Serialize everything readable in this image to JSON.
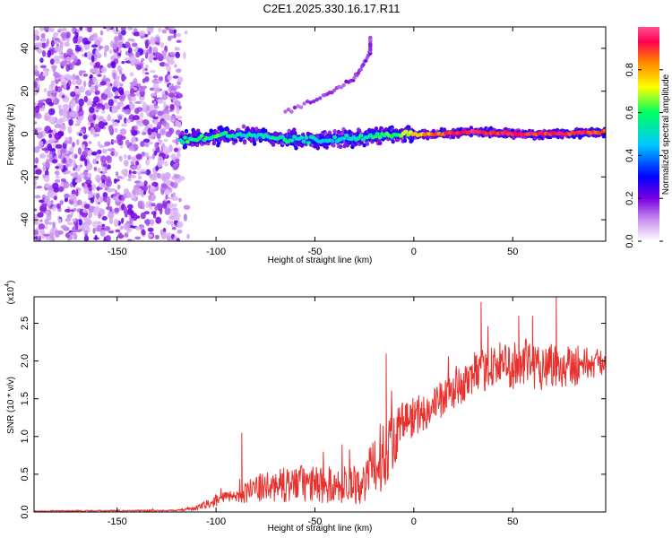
{
  "title": "C2E1.2025.330.16.17.R11",
  "chart_data": [
    {
      "type": "heatmap",
      "name": "spectrogram",
      "xlabel": "Height of straight line (km)",
      "ylabel": "Frequency (Hz)",
      "xlim": [
        -192,
        97
      ],
      "ylim": [
        -50,
        50
      ],
      "xticks": [
        -150,
        -100,
        -50,
        0,
        50
      ],
      "yticks": [
        -40,
        -20,
        0,
        20,
        40
      ],
      "colorbar": {
        "label": "Normalized spectral amplitude",
        "range": [
          0,
          1
        ],
        "ticks": [
          "0.0",
          "0.2",
          "0.4",
          "0.6",
          "0.8"
        ],
        "tick_values": [
          0,
          0.2,
          0.4,
          0.6,
          0.8
        ],
        "colors": [
          "#ffffff",
          "#c890f0",
          "#7a00e0",
          "#0000ff",
          "#00c8ff",
          "#00ff60",
          "#ffff00",
          "#ff8000",
          "#ff0050",
          "#ff5090"
        ]
      },
      "noise_region_x": [
        -192,
        -118
      ],
      "signal_track": [
        {
          "x": -118,
          "freq": -3,
          "amp": 0.55
        },
        {
          "x": -100,
          "freq": -1,
          "amp": 0.6
        },
        {
          "x": -85,
          "freq": 0,
          "amp": 0.5
        },
        {
          "x": -70,
          "freq": -2,
          "amp": 0.55
        },
        {
          "x": -50,
          "freq": -3,
          "amp": 0.5
        },
        {
          "x": -35,
          "freq": -2,
          "amp": 0.5
        },
        {
          "x": -20,
          "freq": -1,
          "amp": 0.55
        },
        {
          "x": -10,
          "freq": 0,
          "amp": 0.6
        },
        {
          "x": 0,
          "freq": 0,
          "amp": 0.75
        },
        {
          "x": 10,
          "freq": 0,
          "amp": 0.85
        },
        {
          "x": 30,
          "freq": 1,
          "amp": 0.95
        },
        {
          "x": 50,
          "freq": 0,
          "amp": 0.9
        },
        {
          "x": 70,
          "freq": 0,
          "amp": 0.92
        },
        {
          "x": 97,
          "freq": 1,
          "amp": 0.9
        }
      ],
      "faint_diagonal": [
        {
          "x": -65,
          "freq": 10
        },
        {
          "x": -45,
          "freq": 18
        },
        {
          "x": -30,
          "freq": 26
        },
        {
          "x": -22,
          "freq": 38
        },
        {
          "x": -22,
          "freq": 45
        }
      ]
    },
    {
      "type": "line",
      "name": "snr",
      "xlabel": "Height of straight line (km)",
      "ylabel": "SNR (10 * v/v)",
      "yscale_note": "(x10",
      "yscale_exp": "4",
      "yscale_close": ")",
      "xlim": [
        -192,
        97
      ],
      "ylim": [
        0,
        2.85
      ],
      "xticks": [
        -150,
        -100,
        -50,
        0,
        50
      ],
      "yticks": [
        "0.0",
        "0.5",
        "1.0",
        "1.5",
        "2.0",
        "2.5"
      ],
      "ytick_values": [
        0,
        0.5,
        1.0,
        1.5,
        2.0,
        2.5
      ],
      "color": "#e8302c",
      "envelope": [
        {
          "x": -192,
          "mean": 0.01,
          "amp": 0.01
        },
        {
          "x": -120,
          "mean": 0.02,
          "amp": 0.01
        },
        {
          "x": -110,
          "mean": 0.05,
          "amp": 0.03
        },
        {
          "x": -100,
          "mean": 0.15,
          "amp": 0.08
        },
        {
          "x": -90,
          "mean": 0.22,
          "amp": 0.1
        },
        {
          "x": -80,
          "mean": 0.3,
          "amp": 0.18
        },
        {
          "x": -60,
          "mean": 0.38,
          "amp": 0.25
        },
        {
          "x": -40,
          "mean": 0.35,
          "amp": 0.25
        },
        {
          "x": -25,
          "mean": 0.4,
          "amp": 0.3
        },
        {
          "x": -15,
          "mean": 0.8,
          "amp": 0.5
        },
        {
          "x": -5,
          "mean": 1.2,
          "amp": 0.3
        },
        {
          "x": 10,
          "mean": 1.4,
          "amp": 0.25
        },
        {
          "x": 25,
          "mean": 1.7,
          "amp": 0.25
        },
        {
          "x": 40,
          "mean": 1.95,
          "amp": 0.3
        },
        {
          "x": 60,
          "mean": 1.95,
          "amp": 0.35
        },
        {
          "x": 80,
          "mean": 1.95,
          "amp": 0.3
        },
        {
          "x": 97,
          "mean": 1.98,
          "amp": 0.15
        }
      ],
      "spikes": [
        {
          "x": -87,
          "value": 1.05
        },
        {
          "x": -14,
          "value": 2.1
        },
        {
          "x": 34,
          "value": 2.78
        },
        {
          "x": 53,
          "value": 2.6
        },
        {
          "x": 72,
          "value": 2.85
        },
        {
          "x": 60,
          "value": 2.6
        }
      ]
    }
  ]
}
